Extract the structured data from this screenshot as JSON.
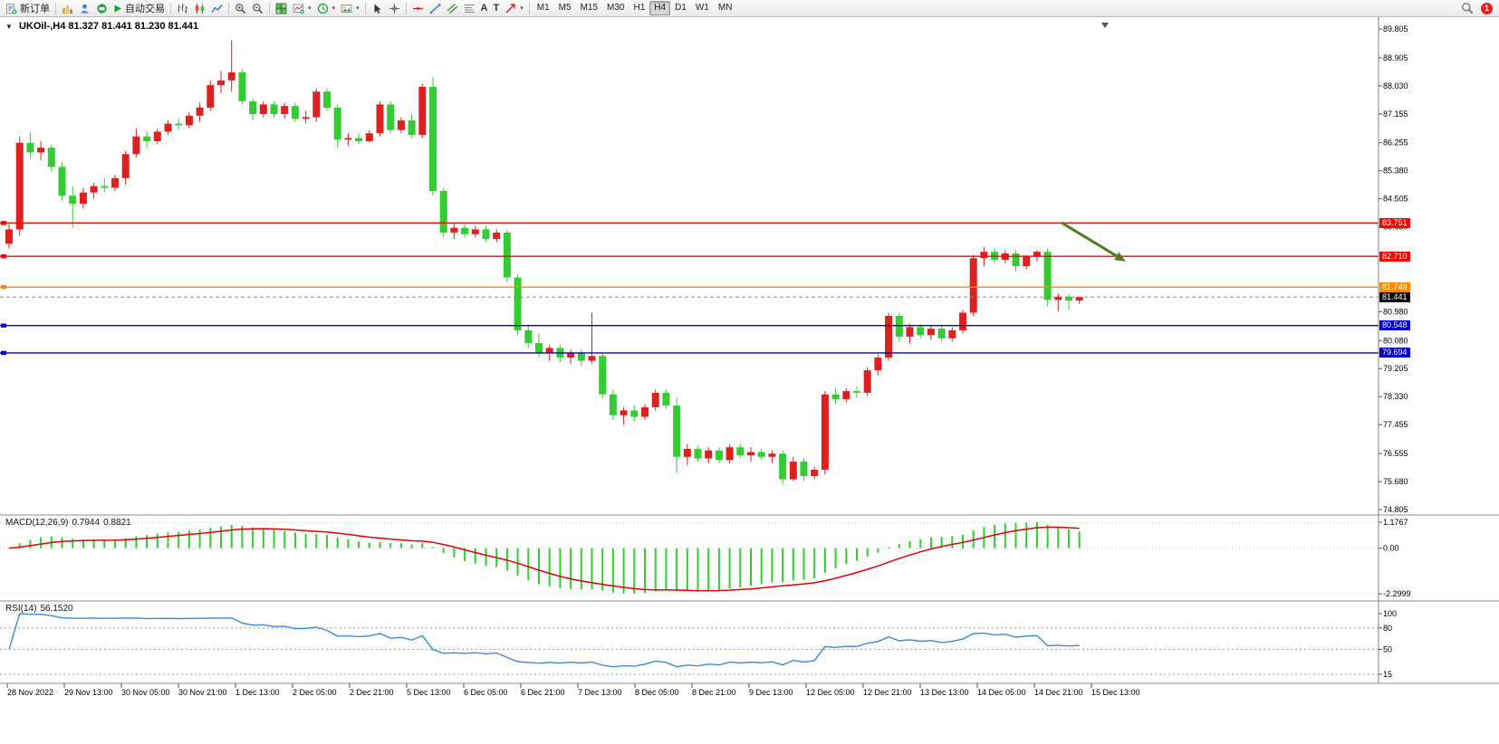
{
  "toolbar": {
    "new_order_label": "新订单",
    "autotrading_label": "自动交易",
    "timeframes": [
      "M1",
      "M5",
      "M15",
      "M30",
      "H1",
      "H4",
      "D1",
      "W1",
      "MN"
    ],
    "active_timeframe": "H4",
    "notification_count": "1"
  },
  "icons": {
    "collapse_triangle": "▼",
    "dropdown_caret": "▾",
    "text_tool": "A",
    "label_tool": "T"
  },
  "chart": {
    "symbol_period": "UKOil-,H4",
    "ohlc": "81.327 81.441 81.230 81.441"
  },
  "chart_data": {
    "type": "candlestick",
    "symbol": "UKOil-",
    "timeframe": "H4",
    "last_ohlc": {
      "open": 81.327,
      "high": 81.441,
      "low": 81.23,
      "close": 81.441
    },
    "price_axis": {
      "max": 89.805,
      "min": 74.805,
      "labels": [
        89.805,
        88.905,
        88.03,
        87.155,
        86.255,
        85.38,
        84.505,
        83.63,
        80.98,
        80.08,
        79.205,
        78.33,
        77.455,
        76.555,
        75.68,
        74.805
      ]
    },
    "time_axis": [
      "28 Nov 2022",
      "29 Nov 13:00",
      "30 Nov 05:00",
      "30 Nov 21:00",
      "1 Dec 13:00",
      "2 Dec 05:00",
      "2 Dec 21:00",
      "5 Dec 13:00",
      "6 Dec 05:00",
      "6 Dec 21:00",
      "7 Dec 13:00",
      "8 Dec 05:00",
      "8 Dec 21:00",
      "9 Dec 13:00",
      "12 Dec 05:00",
      "12 Dec 21:00",
      "13 Dec 13:00",
      "14 Dec 05:00",
      "14 Dec 21:00",
      "15 Dec 13:00"
    ],
    "candles": [
      [
        83.1,
        83.7,
        82.95,
        83.55
      ],
      [
        83.55,
        86.45,
        83.35,
        86.25
      ],
      [
        86.25,
        86.6,
        85.75,
        85.95
      ],
      [
        85.95,
        86.3,
        85.7,
        86.1
      ],
      [
        86.1,
        86.2,
        85.35,
        85.5
      ],
      [
        85.5,
        85.65,
        84.45,
        84.6
      ],
      [
        84.6,
        84.9,
        83.6,
        84.35
      ],
      [
        84.35,
        84.85,
        84.2,
        84.7
      ],
      [
        84.7,
        85.0,
        84.5,
        84.9
      ],
      [
        84.9,
        85.15,
        84.7,
        84.85
      ],
      [
        84.85,
        85.25,
        84.75,
        85.15
      ],
      [
        85.15,
        86.0,
        84.95,
        85.9
      ],
      [
        85.9,
        86.7,
        85.8,
        86.45
      ],
      [
        86.45,
        86.6,
        86.1,
        86.3
      ],
      [
        86.3,
        86.7,
        86.2,
        86.6
      ],
      [
        86.6,
        86.95,
        86.5,
        86.85
      ],
      [
        86.85,
        87.0,
        86.65,
        86.8
      ],
      [
        86.8,
        87.2,
        86.7,
        87.1
      ],
      [
        87.1,
        87.5,
        86.9,
        87.35
      ],
      [
        87.35,
        88.2,
        87.25,
        88.05
      ],
      [
        88.05,
        88.5,
        87.8,
        88.2
      ],
      [
        88.2,
        89.45,
        87.85,
        88.45
      ],
      [
        88.45,
        88.55,
        87.45,
        87.55
      ],
      [
        87.55,
        87.65,
        86.95,
        87.15
      ],
      [
        87.15,
        87.55,
        87.05,
        87.45
      ],
      [
        87.45,
        87.55,
        87.05,
        87.15
      ],
      [
        87.15,
        87.5,
        87.0,
        87.4
      ],
      [
        87.4,
        87.5,
        86.9,
        87.0
      ],
      [
        87.0,
        87.25,
        86.85,
        87.05
      ],
      [
        87.05,
        87.95,
        86.9,
        87.85
      ],
      [
        87.85,
        87.95,
        87.25,
        87.35
      ],
      [
        87.35,
        87.45,
        86.1,
        86.35
      ],
      [
        86.35,
        86.55,
        86.15,
        86.4
      ],
      [
        86.4,
        86.55,
        86.2,
        86.3
      ],
      [
        86.3,
        86.65,
        86.25,
        86.55
      ],
      [
        86.55,
        87.55,
        86.45,
        87.45
      ],
      [
        87.45,
        87.55,
        86.55,
        86.65
      ],
      [
        86.65,
        87.05,
        86.55,
        86.95
      ],
      [
        86.95,
        87.15,
        86.4,
        86.5
      ],
      [
        86.5,
        88.1,
        86.4,
        88.0
      ],
      [
        88.0,
        88.3,
        84.6,
        84.75
      ],
      [
        84.75,
        84.85,
        83.3,
        83.45
      ],
      [
        83.45,
        83.75,
        83.25,
        83.6
      ],
      [
        83.6,
        83.7,
        83.3,
        83.4
      ],
      [
        83.4,
        83.65,
        83.3,
        83.55
      ],
      [
        83.55,
        83.65,
        83.15,
        83.25
      ],
      [
        83.25,
        83.55,
        83.15,
        83.45
      ],
      [
        83.45,
        83.55,
        81.9,
        82.05
      ],
      [
        82.05,
        82.15,
        80.25,
        80.4
      ],
      [
        80.4,
        80.55,
        79.85,
        80.0
      ],
      [
        80.0,
        80.3,
        79.55,
        79.7
      ],
      [
        79.7,
        79.95,
        79.45,
        79.85
      ],
      [
        79.85,
        79.95,
        79.4,
        79.55
      ],
      [
        79.55,
        79.8,
        79.35,
        79.7
      ],
      [
        79.7,
        79.8,
        79.3,
        79.45
      ],
      [
        79.45,
        80.95,
        79.35,
        79.6
      ],
      [
        79.6,
        79.7,
        78.25,
        78.4
      ],
      [
        78.4,
        78.55,
        77.6,
        77.75
      ],
      [
        77.75,
        78.0,
        77.45,
        77.9
      ],
      [
        77.9,
        78.05,
        77.55,
        77.7
      ],
      [
        77.7,
        78.1,
        77.6,
        78.0
      ],
      [
        78.0,
        78.55,
        77.9,
        78.45
      ],
      [
        78.45,
        78.55,
        77.95,
        78.05
      ],
      [
        78.05,
        78.3,
        75.95,
        76.45
      ],
      [
        76.45,
        76.85,
        76.2,
        76.7
      ],
      [
        76.7,
        76.8,
        76.3,
        76.4
      ],
      [
        76.4,
        76.75,
        76.25,
        76.65
      ],
      [
        76.65,
        76.75,
        76.25,
        76.35
      ],
      [
        76.35,
        76.85,
        76.25,
        76.75
      ],
      [
        76.75,
        76.85,
        76.4,
        76.5
      ],
      [
        76.5,
        76.75,
        76.3,
        76.6
      ],
      [
        76.6,
        76.7,
        76.35,
        76.45
      ],
      [
        76.45,
        76.65,
        76.25,
        76.55
      ],
      [
        76.55,
        76.65,
        75.6,
        75.75
      ],
      [
        75.75,
        76.45,
        75.7,
        76.3
      ],
      [
        76.3,
        76.4,
        75.7,
        75.85
      ],
      [
        75.85,
        76.15,
        75.75,
        76.05
      ],
      [
        76.05,
        78.5,
        75.9,
        78.4
      ],
      [
        78.4,
        78.6,
        78.1,
        78.25
      ],
      [
        78.25,
        78.6,
        78.15,
        78.5
      ],
      [
        78.5,
        78.65,
        78.3,
        78.45
      ],
      [
        78.45,
        79.25,
        78.35,
        79.15
      ],
      [
        79.15,
        79.65,
        79.0,
        79.55
      ],
      [
        79.55,
        80.95,
        79.45,
        80.85
      ],
      [
        80.85,
        80.95,
        80.05,
        80.2
      ],
      [
        80.2,
        80.6,
        80.0,
        80.5
      ],
      [
        80.5,
        80.6,
        80.15,
        80.25
      ],
      [
        80.25,
        80.55,
        80.1,
        80.45
      ],
      [
        80.45,
        80.55,
        80.05,
        80.15
      ],
      [
        80.15,
        80.5,
        80.05,
        80.4
      ],
      [
        80.4,
        81.05,
        80.3,
        80.95
      ],
      [
        80.95,
        82.75,
        80.85,
        82.65
      ],
      [
        82.65,
        83.0,
        82.4,
        82.85
      ],
      [
        82.85,
        82.95,
        82.5,
        82.6
      ],
      [
        82.6,
        82.9,
        82.5,
        82.8
      ],
      [
        82.8,
        82.9,
        82.25,
        82.4
      ],
      [
        82.4,
        82.75,
        82.3,
        82.7
      ],
      [
        82.7,
        82.9,
        82.55,
        82.85
      ],
      [
        82.85,
        82.95,
        81.15,
        81.35
      ],
      [
        81.35,
        81.55,
        81.0,
        81.45
      ],
      [
        81.45,
        81.52,
        81.05,
        81.33
      ],
      [
        81.327,
        81.441,
        81.23,
        81.441
      ]
    ],
    "colors": {
      "bull": "#e01f1f",
      "bear": "#33cc33",
      "macd_hist": "#32cd32",
      "macd_signal": "#e60000",
      "rsi_line": "#3c8bd8",
      "arrow": "#4e7d1e",
      "axis_text": "#000000"
    },
    "hlines": [
      {
        "price": 83.751,
        "color": "#ff0000"
      },
      {
        "price": 82.71,
        "color": "#ff0000"
      },
      {
        "price": 81.749,
        "color": "#ff8a00"
      },
      {
        "price": 80.548,
        "color": "#0000cc"
      },
      {
        "price": 79.694,
        "color": "#0000cc"
      }
    ],
    "current_price": 81.441,
    "indicators": {
      "macd": {
        "label": "MACD(12,26,9)",
        "value_main": "0.7944",
        "value_signal": "0.8821",
        "fast": 12,
        "slow": 26,
        "signal": 9,
        "axis_labels": [
          "1.1767",
          "0.00",
          "-2.2999"
        ]
      },
      "rsi": {
        "label": "RSI(14)",
        "value": "56.1520",
        "period": 14,
        "axis_labels": [
          100,
          80,
          50,
          15
        ],
        "levels": [
          80,
          50,
          15
        ]
      }
    },
    "annotation": {
      "type": "arrow-down-right",
      "color": "#4e7d1e"
    }
  }
}
